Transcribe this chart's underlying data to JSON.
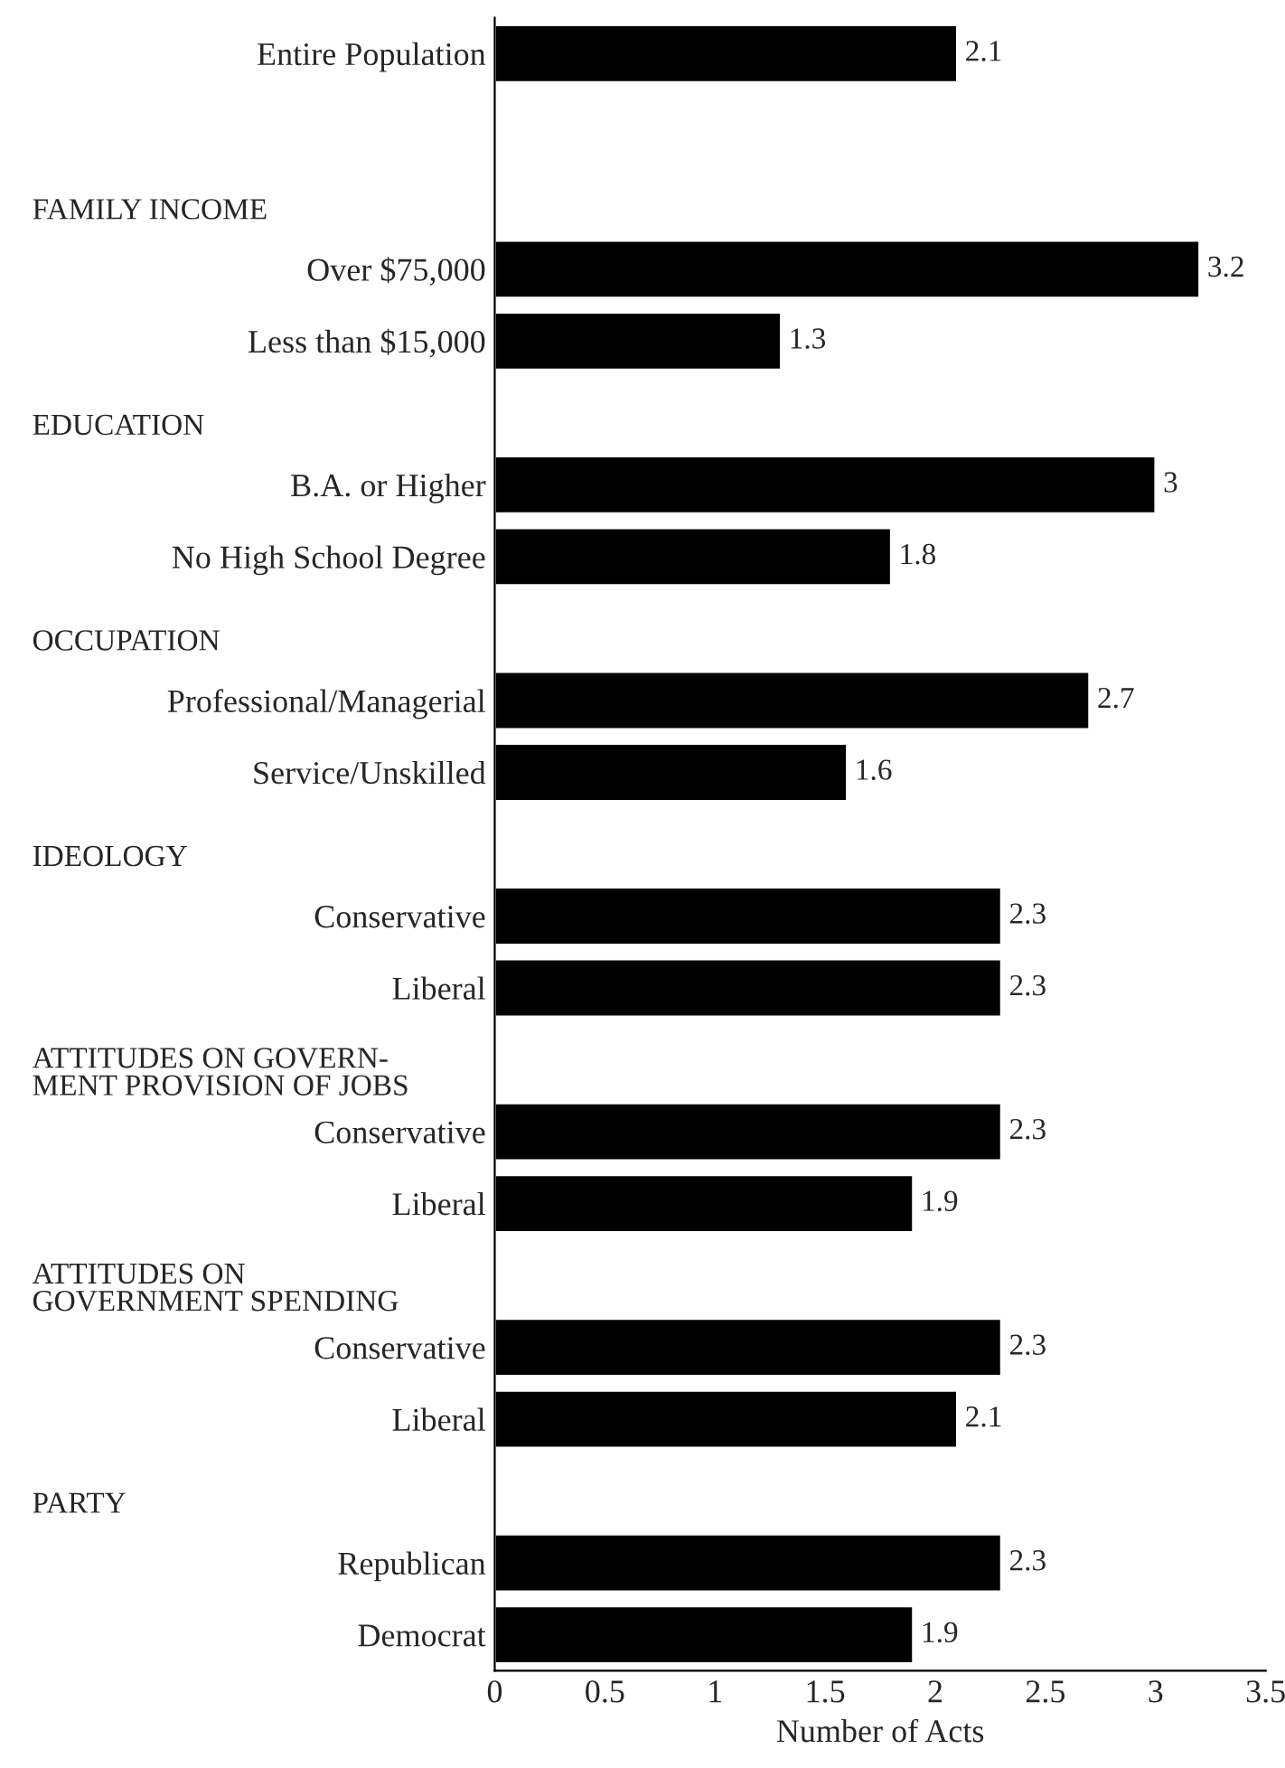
{
  "chart_data": {
    "type": "bar",
    "orientation": "horizontal",
    "categories": [
      "Entire Population",
      null,
      null,
      "Over $75,000",
      "Less than $15,000",
      null,
      "B.A. or Higher",
      "No High School Degree",
      null,
      "Professional/Managerial",
      "Service/Unskilled",
      null,
      "Conservative",
      "Liberal",
      null,
      "Conservative",
      "Liberal",
      null,
      "Conservative",
      "Liberal",
      null,
      "Republican",
      "Democrat"
    ],
    "annotations": [
      "FAMILY INCOME",
      "EDUCATION",
      "OCCUPATION",
      "IDEOLOGY",
      "ATTITUDES ON GOVERN-\nMENT PROVISION OF JOBS",
      "ATTITUDES ON\nGOVERNMENT SPENDING",
      "PARTY"
    ],
    "values": [
      2.1,
      null,
      null,
      3.2,
      1.3,
      null,
      3,
      1.8,
      null,
      2.7,
      1.6,
      null,
      2.3,
      2.3,
      null,
      2.3,
      1.9,
      null,
      2.3,
      2.1,
      null,
      2.3,
      1.9
    ],
    "color": "#000000",
    "xlim": [
      0,
      3.5
    ],
    "xticks": [
      0,
      0.5,
      1,
      1.5,
      2,
      2.5,
      3,
      3.5
    ],
    "xlabel": "Number of Acts",
    "data_labels": true,
    "grid": false,
    "legend": false
  }
}
